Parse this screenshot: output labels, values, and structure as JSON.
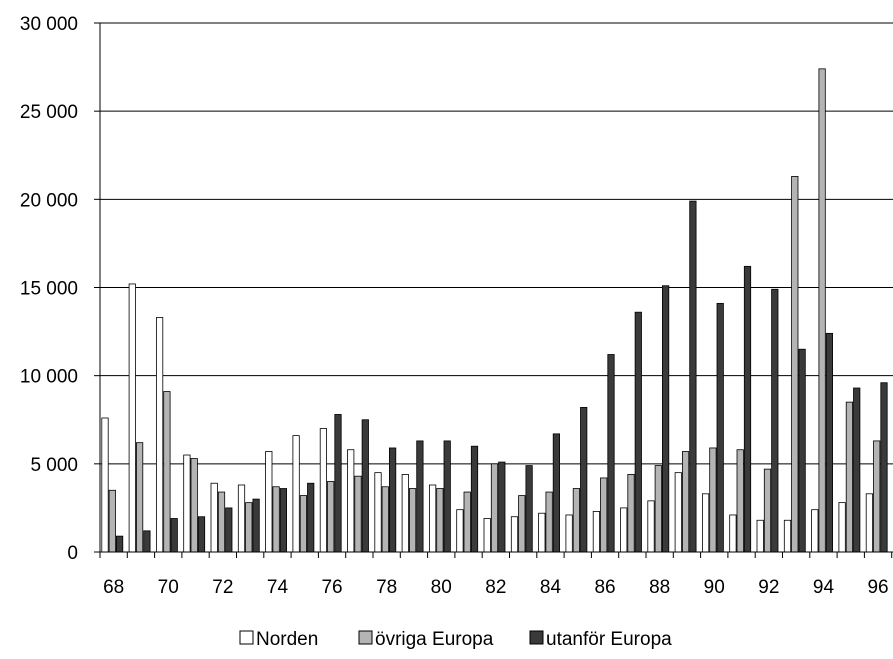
{
  "chart_data": {
    "type": "bar",
    "title": "",
    "xlabel": "",
    "ylabel": "",
    "ylim": [
      0,
      30000
    ],
    "y_ticks": [
      0,
      5000,
      10000,
      15000,
      20000,
      25000,
      30000
    ],
    "y_tick_labels": [
      "0",
      "5 000",
      "10 000",
      "15 000",
      "20 000",
      "25 000",
      "30 000"
    ],
    "grid": "horizontal",
    "legend_position": "bottom",
    "categories": [
      "68",
      "69",
      "70",
      "71",
      "72",
      "73",
      "74",
      "75",
      "76",
      "77",
      "78",
      "79",
      "80",
      "81",
      "82",
      "83",
      "84",
      "85",
      "86",
      "87",
      "88",
      "89",
      "90",
      "91",
      "92",
      "93",
      "94",
      "95",
      "96"
    ],
    "x_tick_labels": [
      "68",
      "",
      "70",
      "",
      "72",
      "",
      "74",
      "",
      "76",
      "",
      "78",
      "",
      "80",
      "",
      "82",
      "",
      "84",
      "",
      "86",
      "",
      "88",
      "",
      "90",
      "",
      "92",
      "",
      "94",
      "",
      "96"
    ],
    "series": [
      {
        "name": "Norden",
        "color": "#ffffff",
        "values": [
          7600,
          15200,
          13300,
          5500,
          3900,
          3800,
          5700,
          6600,
          7000,
          5800,
          4500,
          4400,
          3800,
          2400,
          1900,
          2000,
          2200,
          2100,
          2300,
          2500,
          2900,
          4500,
          3300,
          2100,
          1800,
          1800,
          2400,
          2800,
          3300
        ]
      },
      {
        "name": "övriga Europa",
        "color": "#b4b4b4",
        "values": [
          3500,
          6200,
          9100,
          5300,
          3400,
          2800,
          3700,
          3200,
          4000,
          4300,
          3700,
          3600,
          3600,
          3400,
          5000,
          3200,
          3400,
          3600,
          4200,
          4400,
          4900,
          5700,
          5900,
          5800,
          4700,
          21300,
          27400,
          8500,
          6300
        ]
      },
      {
        "name": "utanför Europa",
        "color": "#3a3a3a",
        "values": [
          900,
          1200,
          1900,
          2000,
          2500,
          3000,
          3600,
          3900,
          7800,
          7500,
          5900,
          6300,
          6300,
          6000,
          5100,
          4900,
          6700,
          8200,
          11200,
          13600,
          15100,
          19900,
          14100,
          16200,
          14900,
          11500,
          12400,
          9300,
          9600
        ]
      }
    ]
  }
}
